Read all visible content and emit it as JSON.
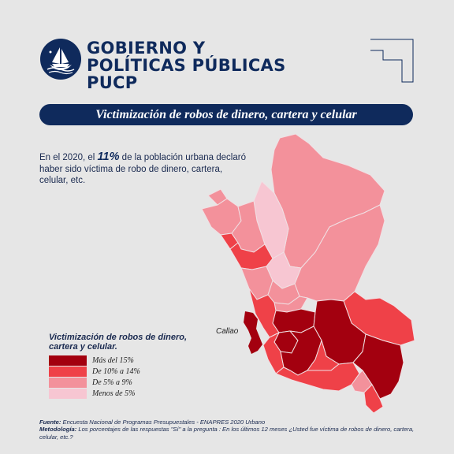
{
  "brand": {
    "line1": "GOBIERNO Y",
    "line2": "POLÍTICAS PÚBLICAS",
    "line3": "PUCP"
  },
  "banner_title": "Victimización de robos de dinero, cartera y celular",
  "intro": {
    "part1": "En el 2020, el ",
    "percent": "11%",
    "part2": " de la población urbana declaró haber sido víctima de robo de dinero, cartera, celular, etc."
  },
  "map": {
    "callao_label": "Callao"
  },
  "legend": {
    "title": "Victimización de robos de dinero, cartera y celular.",
    "items": [
      {
        "label": "Más del 15%",
        "color": "#a3000f"
      },
      {
        "label": "De 10% a 14%",
        "color": "#ef4148"
      },
      {
        "label": "De 5% a 9%",
        "color": "#f3919b"
      },
      {
        "label": "Menos de 5%",
        "color": "#f7c6d2"
      }
    ]
  },
  "footnote": {
    "source_label": "Fuente:",
    "source_text": " Encuesta Nacional de Programas Presupuestales - ENAPRES 2020 Urbano",
    "method_label": "Metodología:",
    "method_text": " Los porcentajes de las respuestas \"Sí\" a la pregunta : En los últimos 12 meses ¿Usted fue víctima de robos de dinero, cartera, celular, etc.?"
  },
  "colors": {
    "navy": "#0f2a5c",
    "background": "#e6e6e6"
  }
}
